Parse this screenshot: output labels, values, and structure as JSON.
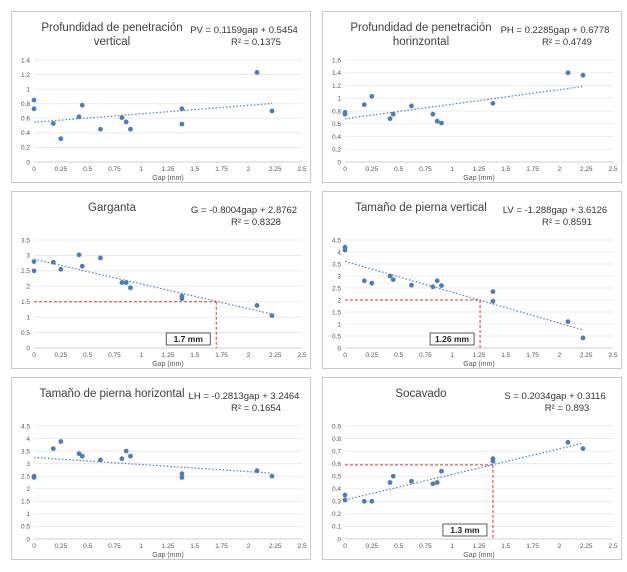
{
  "chart_data": [
    {
      "type": "scatter",
      "title_lines": [
        "Profundidad de penetración",
        "vertical"
      ],
      "equation": "PV = 0.1159gap + 0.5454",
      "r2": "R² = 0.1375",
      "xlabel": "Gap (mm)",
      "xlim": [
        0,
        2.5
      ],
      "ylim": [
        0,
        1.4
      ],
      "x_ticks": [
        "0",
        "0.25",
        "0.5",
        "0.75",
        "1",
        "1.25",
        "1.5",
        "1.75",
        "2",
        "2.25",
        "2.5"
      ],
      "y_ticks": [
        "0",
        "0.2",
        "0.4",
        "0.6",
        "0.8",
        "1",
        "1.2",
        "1.4"
      ],
      "x": [
        0.0,
        0.0,
        0.18,
        0.25,
        0.42,
        0.45,
        0.62,
        0.82,
        0.86,
        0.9,
        1.38,
        1.38,
        2.08,
        2.22
      ],
      "y": [
        0.85,
        0.73,
        0.53,
        0.32,
        0.62,
        0.78,
        0.45,
        0.61,
        0.55,
        0.45,
        0.52,
        0.73,
        1.23,
        0.7
      ],
      "trend": {
        "slope": 0.1159,
        "intercept": 0.5454
      },
      "marker_color": "#4a7ebb",
      "trend_color": "#4a7ebb",
      "annotation": null
    },
    {
      "type": "scatter",
      "title_lines": [
        "Profundidad de penetración",
        "horinzontal"
      ],
      "equation": "PH = 0.2285gap + 0.6778",
      "r2": "R² = 0.4749",
      "xlabel": "Gap (mm)",
      "xlim": [
        0,
        2.5
      ],
      "ylim": [
        0,
        1.6
      ],
      "x_ticks": [
        "0",
        "0.25",
        "0.5",
        "0.75",
        "1",
        "1.25",
        "1.5",
        "1.75",
        "2",
        "2.25",
        "2.5"
      ],
      "y_ticks": [
        "0",
        "0.2",
        "0.4",
        "0.6",
        "0.8",
        "1",
        "1.2",
        "1.4",
        "1.6"
      ],
      "x": [
        0.0,
        0.0,
        0.18,
        0.25,
        0.42,
        0.45,
        0.62,
        0.82,
        0.86,
        0.9,
        1.38,
        2.08,
        2.22
      ],
      "y": [
        0.78,
        0.75,
        0.9,
        1.03,
        0.68,
        0.75,
        0.88,
        0.75,
        0.64,
        0.61,
        0.92,
        1.4,
        1.36
      ],
      "trend": {
        "slope": 0.2285,
        "intercept": 0.6778
      },
      "marker_color": "#4a7ebb",
      "trend_color": "#4a7ebb",
      "annotation": null
    },
    {
      "type": "scatter",
      "title_lines": [
        "Garganta"
      ],
      "equation": "G = -0.8004gap + 2.8762",
      "r2": "R² = 0.8328",
      "xlabel": "Gap (mm)",
      "xlim": [
        0,
        2.5
      ],
      "ylim": [
        0,
        3.5
      ],
      "x_ticks": [
        "0",
        "0.25",
        "0.5",
        "0.75",
        "1",
        "1.25",
        "1.5",
        "1.75",
        "2",
        "2.25",
        "2.5"
      ],
      "y_ticks": [
        "0",
        "0.5",
        "1",
        "1.5",
        "2",
        "2.5",
        "3",
        "3.5"
      ],
      "x": [
        0.0,
        0.0,
        0.18,
        0.25,
        0.42,
        0.45,
        0.62,
        0.82,
        0.86,
        0.9,
        1.38,
        1.38,
        2.08,
        2.22
      ],
      "y": [
        2.8,
        2.5,
        2.78,
        2.55,
        3.02,
        2.65,
        2.92,
        2.12,
        2.12,
        1.95,
        1.6,
        1.68,
        1.38,
        1.05
      ],
      "trend": {
        "slope": -0.8004,
        "intercept": 2.8762
      },
      "marker_color": "#4a7ebb",
      "trend_color": "#4a7ebb",
      "annotation": {
        "x": 1.7,
        "y": 1.5,
        "label": "1.7 mm"
      }
    },
    {
      "type": "scatter",
      "title_lines": [
        "Tamaño de pierna vertical"
      ],
      "equation": "LV = -1.288gap + 3.6126",
      "r2": "R² = 0.8591",
      "xlabel": "Gap (mm)",
      "xlim": [
        0,
        2.5
      ],
      "ylim": [
        0,
        4.5
      ],
      "x_ticks": [
        "0",
        "0.25",
        "0.5",
        "0.75",
        "1",
        "1.25",
        "1.5",
        "1.75",
        "2",
        "2.25",
        "2.5"
      ],
      "y_ticks": [
        "0",
        "0.5",
        "1",
        "1.5",
        "2",
        "2.5",
        "3",
        "3.5",
        "4",
        "4.5"
      ],
      "x": [
        0.0,
        0.0,
        0.18,
        0.25,
        0.42,
        0.45,
        0.62,
        0.82,
        0.86,
        0.9,
        1.38,
        1.38,
        2.08,
        2.22
      ],
      "y": [
        4.2,
        4.08,
        2.8,
        2.7,
        3.0,
        2.85,
        2.62,
        2.55,
        2.8,
        2.6,
        2.35,
        1.95,
        1.1,
        0.42
      ],
      "trend": {
        "slope": -1.288,
        "intercept": 3.6126
      },
      "marker_color": "#4a7ebb",
      "trend_color": "#4a7ebb",
      "annotation": {
        "x": 1.26,
        "y": 2.0,
        "label": "1.26 mm"
      }
    },
    {
      "type": "scatter",
      "title_lines": [
        "Tamaño de pierna horizontal"
      ],
      "equation": "LH = -0.2813gap + 3.2464",
      "r2": "R² = 0.1654",
      "xlabel": "Gap (mm)",
      "xlim": [
        0,
        2.5
      ],
      "ylim": [
        0,
        4.5
      ],
      "x_ticks": [
        "0",
        "0.25",
        "0.5",
        "0.75",
        "1",
        "1.25",
        "1.5",
        "1.75",
        "2",
        "2.25",
        "2.5"
      ],
      "y_ticks": [
        "0",
        "0.5",
        "1",
        "1.5",
        "2",
        "2.5",
        "3",
        "3.5",
        "4",
        "4.5"
      ],
      "x": [
        0.0,
        0.0,
        0.18,
        0.25,
        0.42,
        0.45,
        0.62,
        0.82,
        0.86,
        0.9,
        1.38,
        1.38,
        2.08,
        2.22
      ],
      "y": [
        2.5,
        2.45,
        3.6,
        3.88,
        3.4,
        3.3,
        3.15,
        3.2,
        3.5,
        3.3,
        2.45,
        2.6,
        2.72,
        2.5
      ],
      "trend": {
        "slope": -0.2813,
        "intercept": 3.2464
      },
      "marker_color": "#4a7ebb",
      "trend_color": "#4a7ebb",
      "annotation": null
    },
    {
      "type": "scatter",
      "title_lines": [
        "Socavado"
      ],
      "equation": "S = 0.2034gap + 0.3116",
      "r2": "R² = 0.893",
      "xlabel": "Gap (mm)",
      "xlim": [
        0,
        2.5
      ],
      "ylim": [
        0,
        0.9
      ],
      "x_ticks": [
        "0",
        "0.25",
        "0.5",
        "0.75",
        "1",
        "1.25",
        "1.5",
        "1.75",
        "2",
        "2.25",
        "2.5"
      ],
      "y_ticks": [
        "0",
        "0.1",
        "0.2",
        "0.3",
        "0.4",
        "0.5",
        "0.6",
        "0.7",
        "0.8",
        "0.9"
      ],
      "x": [
        0.0,
        0.0,
        0.18,
        0.25,
        0.42,
        0.45,
        0.62,
        0.82,
        0.86,
        0.9,
        1.38,
        1.38,
        2.08,
        2.22
      ],
      "y": [
        0.35,
        0.31,
        0.3,
        0.3,
        0.45,
        0.5,
        0.46,
        0.44,
        0.45,
        0.54,
        0.62,
        0.64,
        0.77,
        0.72
      ],
      "trend": {
        "slope": 0.2034,
        "intercept": 0.3116
      },
      "marker_color": "#4a7ebb",
      "trend_color": "#4a7ebb",
      "annotation": {
        "x": 1.38,
        "y": 0.59,
        "label": "1.3 mm"
      }
    }
  ]
}
